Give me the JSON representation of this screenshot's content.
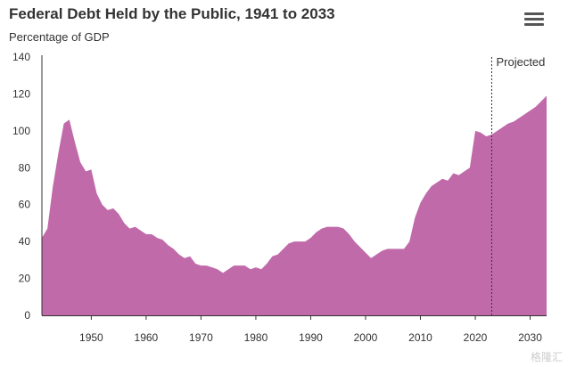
{
  "header": {
    "title": "Federal Debt Held by the Public, 1941 to 2033",
    "subtitle": "Percentage of GDP",
    "menu_icon": "hamburger-menu-icon"
  },
  "watermark": "格隆汇",
  "chart_data": {
    "type": "area",
    "title": "Federal Debt Held by the Public, 1941 to 2033",
    "ylabel": "Percentage of GDP",
    "xlim": [
      1941,
      2033
    ],
    "ylim": [
      0,
      140
    ],
    "grid": false,
    "fill_color": "#c06aaa",
    "x_ticks": [
      1950,
      1960,
      1970,
      1980,
      1990,
      2000,
      2010,
      2020,
      2030
    ],
    "y_ticks": [
      0,
      20,
      40,
      60,
      80,
      100,
      120,
      140
    ],
    "annotations": [
      {
        "x": 2023,
        "label": "Projected",
        "style": "dotted-vertical-line"
      }
    ],
    "series": [
      {
        "x": [
          1941,
          1942,
          1943,
          1944,
          1945,
          1946,
          1947,
          1948,
          1949,
          1950,
          1951,
          1952,
          1953,
          1954,
          1955,
          1956,
          1957,
          1958,
          1959,
          1960,
          1961,
          1962,
          1963,
          1964,
          1965,
          1966,
          1967,
          1968,
          1969,
          1970,
          1971,
          1972,
          1973,
          1974,
          1975,
          1976,
          1977,
          1978,
          1979,
          1980,
          1981,
          1982,
          1983,
          1984,
          1985,
          1986,
          1987,
          1988,
          1989,
          1990,
          1991,
          1992,
          1993,
          1994,
          1995,
          1996,
          1997,
          1998,
          1999,
          2000,
          2001,
          2002,
          2003,
          2004,
          2005,
          2006,
          2007,
          2008,
          2009,
          2010,
          2011,
          2012,
          2013,
          2014,
          2015,
          2016,
          2017,
          2018,
          2019,
          2020,
          2021,
          2022,
          2023,
          2024,
          2025,
          2026,
          2027,
          2028,
          2029,
          2030,
          2031,
          2032,
          2033
        ],
        "values": [
          42,
          47,
          70,
          88,
          104,
          106,
          94,
          83,
          78,
          79,
          66,
          60,
          57,
          58,
          55,
          50,
          47,
          48,
          46,
          44,
          44,
          42,
          41,
          38,
          36,
          33,
          31,
          32,
          28,
          27,
          27,
          26,
          25,
          23,
          25,
          27,
          27,
          27,
          25,
          26,
          25,
          28,
          32,
          33,
          36,
          39,
          40,
          40,
          40,
          42,
          45,
          47,
          48,
          48,
          48,
          47,
          44,
          40,
          37,
          34,
          31,
          33,
          35,
          36,
          36,
          36,
          36,
          40,
          53,
          61,
          66,
          70,
          72,
          74,
          73,
          77,
          76,
          78,
          80,
          100,
          99,
          97,
          98,
          100,
          102,
          104,
          105,
          107,
          109,
          111,
          113,
          116,
          119
        ]
      }
    ]
  }
}
